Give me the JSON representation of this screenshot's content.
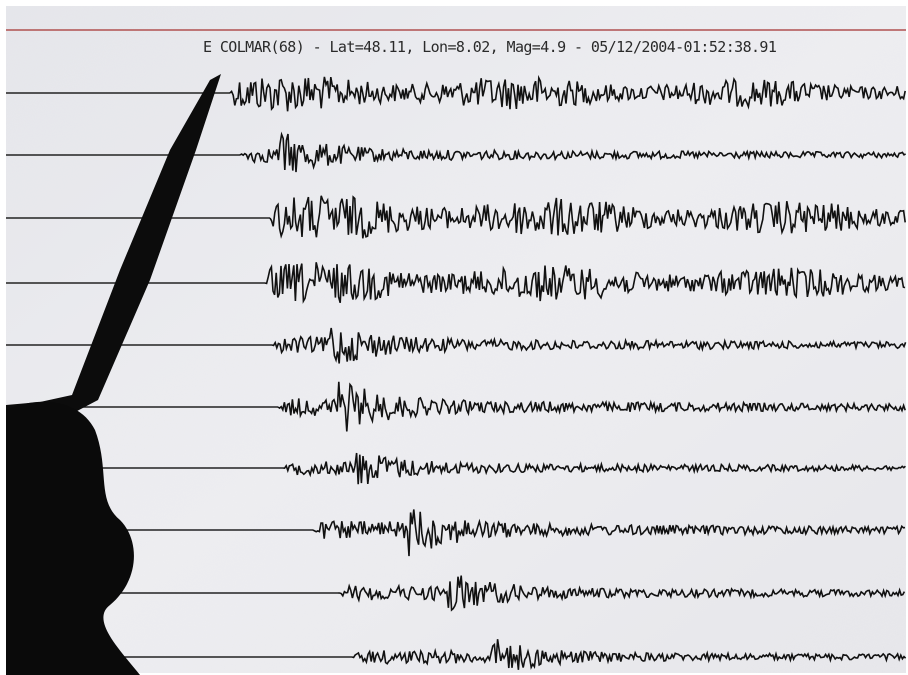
{
  "header": {
    "caption": "E COLMAR(68) - Lat=48.11, Lon=8.02, Mag=4.9 - 05/12/2004-01:52:38.91"
  }
}
